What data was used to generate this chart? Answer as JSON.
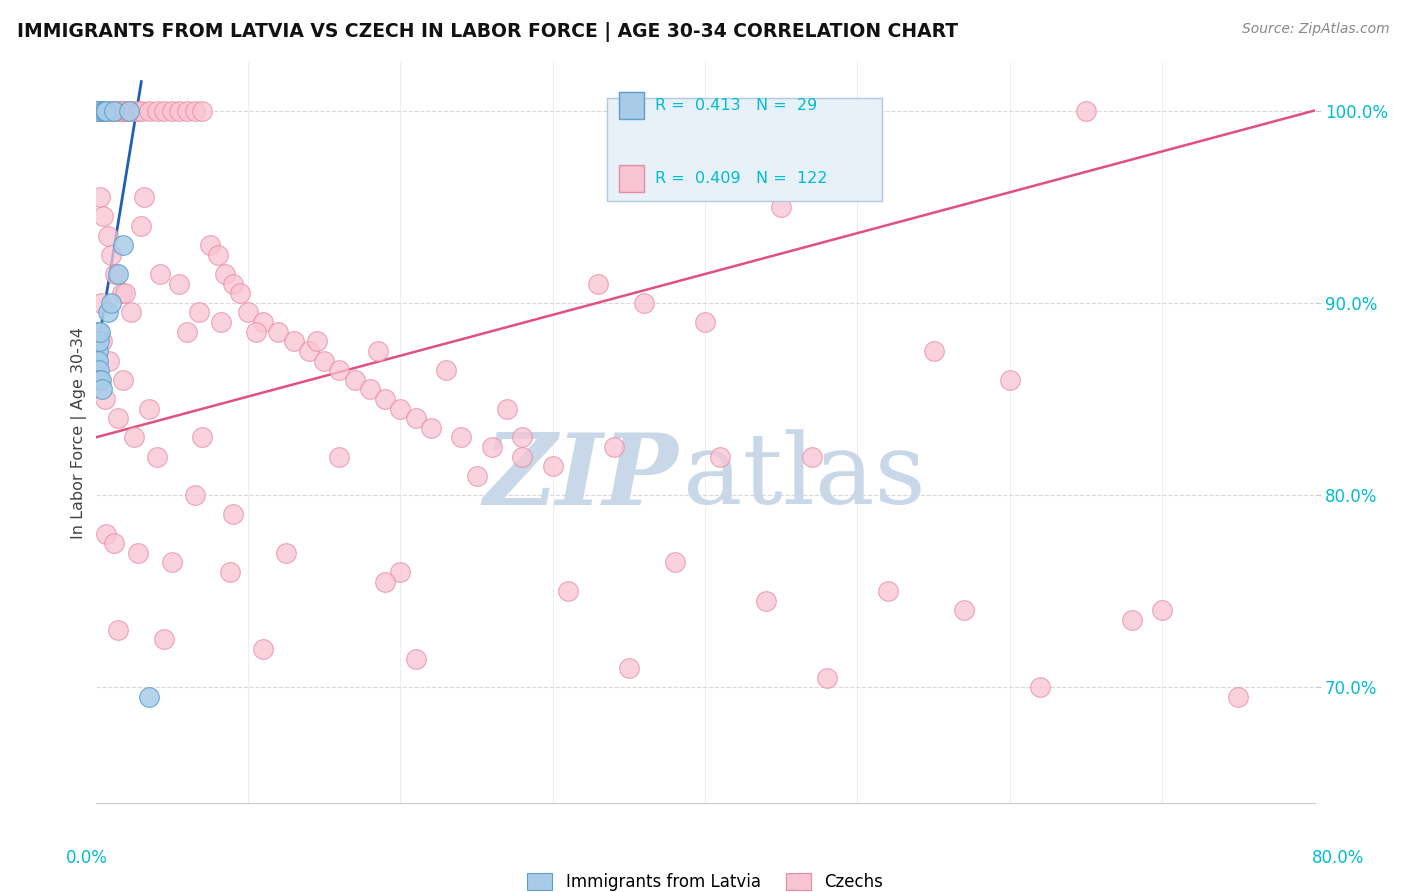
{
  "title": "IMMIGRANTS FROM LATVIA VS CZECH IN LABOR FORCE | AGE 30-34 CORRELATION CHART",
  "source": "Source: ZipAtlas.com",
  "legend_latvia": "Immigrants from Latvia",
  "legend_czech": "Czechs",
  "R_latvia": 0.413,
  "N_latvia": 29,
  "R_czech": 0.409,
  "N_czech": 122,
  "color_latvia_fill": "#a8cce8",
  "color_latvia_edge": "#5b9ec9",
  "color_czech_fill": "#f9c4d4",
  "color_czech_edge": "#e88aa0",
  "trendline_latvia": "#2060b0",
  "trendline_czech": "#e05080",
  "xmin": 0.0,
  "xmax": 80.0,
  "ymin": 64.0,
  "ymax": 102.5,
  "right_yticks": [
    70.0,
    80.0,
    90.0,
    100.0
  ],
  "right_yticklabels": [
    "70.0%",
    "80.0%",
    "90.0%",
    "100.0%"
  ],
  "ytick_color": "#00bcd4",
  "latvia_x": [
    0.0,
    0.0,
    0.05,
    0.06,
    0.07,
    0.08,
    0.09,
    0.1,
    0.1,
    0.12,
    0.13,
    0.15,
    0.18,
    0.2,
    0.22,
    0.25,
    0.3,
    0.35,
    0.4,
    0.5,
    0.6,
    0.7,
    0.8,
    1.0,
    1.2,
    1.5,
    1.8,
    2.2,
    3.5
  ],
  "latvia_y": [
    100.0,
    100.0,
    100.0,
    100.0,
    100.0,
    100.0,
    100.0,
    100.0,
    100.0,
    100.0,
    88.5,
    87.5,
    87.0,
    88.0,
    86.5,
    86.0,
    88.5,
    86.0,
    85.5,
    100.0,
    100.0,
    100.0,
    89.5,
    90.0,
    100.0,
    91.5,
    93.0,
    100.0,
    69.5
  ],
  "czech_x": [
    0.1,
    0.15,
    0.2,
    0.25,
    0.3,
    0.4,
    0.5,
    0.6,
    0.7,
    0.8,
    0.9,
    1.0,
    1.1,
    1.2,
    1.4,
    1.6,
    1.8,
    2.0,
    2.2,
    2.5,
    2.8,
    3.0,
    3.5,
    4.0,
    4.5,
    5.0,
    5.5,
    6.0,
    6.5,
    7.0,
    7.5,
    8.0,
    8.5,
    9.0,
    9.5,
    10.0,
    11.0,
    12.0,
    13.0,
    14.0,
    15.0,
    16.0,
    17.0,
    18.0,
    19.0,
    20.0,
    21.0,
    22.0,
    24.0,
    26.0,
    28.0,
    30.0,
    33.0,
    36.0,
    40.0,
    45.0,
    50.0,
    55.0,
    60.0,
    65.0,
    0.3,
    0.5,
    0.8,
    1.0,
    1.3,
    1.7,
    2.3,
    3.2,
    4.2,
    5.5,
    6.8,
    8.2,
    10.5,
    14.5,
    18.5,
    23.0,
    28.0,
    34.0,
    41.0,
    47.0,
    0.2,
    0.6,
    1.5,
    2.5,
    4.0,
    6.5,
    9.0,
    12.5,
    20.0,
    27.0,
    0.4,
    0.9,
    1.8,
    3.5,
    7.0,
    16.0,
    25.0,
    38.0,
    52.0,
    70.0,
    0.7,
    1.2,
    2.8,
    5.0,
    8.8,
    19.0,
    31.0,
    44.0,
    57.0,
    68.0,
    1.5,
    4.5,
    11.0,
    21.0,
    35.0,
    48.0,
    62.0,
    75.0,
    0.35,
    1.9,
    3.0,
    6.0
  ],
  "czech_y": [
    100.0,
    100.0,
    100.0,
    100.0,
    100.0,
    100.0,
    100.0,
    100.0,
    100.0,
    100.0,
    100.0,
    100.0,
    100.0,
    100.0,
    100.0,
    100.0,
    100.0,
    100.0,
    100.0,
    100.0,
    100.0,
    100.0,
    100.0,
    100.0,
    100.0,
    100.0,
    100.0,
    100.0,
    100.0,
    100.0,
    93.0,
    92.5,
    91.5,
    91.0,
    90.5,
    89.5,
    89.0,
    88.5,
    88.0,
    87.5,
    87.0,
    86.5,
    86.0,
    85.5,
    85.0,
    84.5,
    84.0,
    83.5,
    83.0,
    82.5,
    82.0,
    81.5,
    91.0,
    90.0,
    89.0,
    95.0,
    97.5,
    87.5,
    86.0,
    100.0,
    95.5,
    94.5,
    93.5,
    92.5,
    91.5,
    90.5,
    89.5,
    95.5,
    91.5,
    91.0,
    89.5,
    89.0,
    88.5,
    88.0,
    87.5,
    86.5,
    83.0,
    82.5,
    82.0,
    82.0,
    86.0,
    85.0,
    84.0,
    83.0,
    82.0,
    80.0,
    79.0,
    77.0,
    76.0,
    84.5,
    88.0,
    87.0,
    86.0,
    84.5,
    83.0,
    82.0,
    81.0,
    76.5,
    75.0,
    74.0,
    78.0,
    77.5,
    77.0,
    76.5,
    76.0,
    75.5,
    75.0,
    74.5,
    74.0,
    73.5,
    73.0,
    72.5,
    72.0,
    71.5,
    71.0,
    70.5,
    70.0,
    69.5,
    90.0,
    90.5,
    94.0,
    88.5
  ],
  "watermark_zip_color": "#c8d8e8",
  "watermark_atlas_color": "#c8d8e8",
  "grid_color": "#d0d0d0",
  "legend_box_color": "#e8f0f8",
  "legend_box_edge": "#b0c8e0"
}
